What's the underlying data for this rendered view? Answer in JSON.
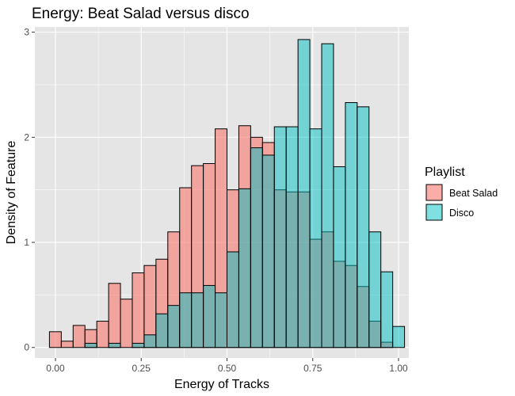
{
  "chart_data": {
    "type": "histogram",
    "title": "Energy: Beat Salad versus disco",
    "xlabel": "Energy of Tracks",
    "ylabel": "Density of Feature",
    "xlim": [
      -0.06,
      1.03
    ],
    "ylim": [
      -0.1,
      3.05
    ],
    "x_ticks": [
      0.0,
      0.25,
      0.5,
      0.75,
      1.0
    ],
    "x_tick_labels": [
      "0.00",
      "0.25",
      "0.50",
      "0.75",
      "1.00"
    ],
    "y_ticks": [
      0,
      1,
      2,
      3
    ],
    "y_tick_labels": [
      "0",
      "1",
      "2",
      "3"
    ],
    "grid": true,
    "panel_background": "#e5e5e5",
    "grid_color": "#ffffff",
    "bin_width": 0.0345,
    "bin_starts": [
      -0.0175,
      0.017,
      0.0515,
      0.086,
      0.1205,
      0.155,
      0.1895,
      0.224,
      0.2585,
      0.293,
      0.3275,
      0.362,
      0.3965,
      0.431,
      0.4655,
      0.5,
      0.5345,
      0.569,
      0.6035,
      0.638,
      0.6725,
      0.707,
      0.7415,
      0.776,
      0.8105,
      0.845,
      0.8795,
      0.914,
      0.9485
    ],
    "series": [
      {
        "name": "Beat Salad",
        "color": "#f8766d",
        "alpha": 0.6,
        "values": [
          0.15,
          0.06,
          0.21,
          0.17,
          0.25,
          0.61,
          0.46,
          0.71,
          0.78,
          0.84,
          1.1,
          1.52,
          1.73,
          1.75,
          2.08,
          1.5,
          2.11,
          2.0,
          1.95,
          1.5,
          1.48,
          1.48,
          1.03,
          1.1,
          0.82,
          0.78,
          0.58,
          0.25,
          0.05
        ]
      },
      {
        "name": "Disco",
        "color": "#00bfc4",
        "alpha": 0.5,
        "values": [
          0.0,
          0.0,
          0.0,
          0.04,
          0.0,
          0.04,
          0.0,
          0.04,
          0.12,
          0.32,
          0.4,
          0.52,
          0.52,
          0.59,
          0.52,
          0.91,
          1.51,
          1.9,
          1.83,
          2.1,
          2.1,
          2.93,
          2.08,
          2.89,
          1.72,
          2.33,
          2.29,
          1.1,
          0.72
        ]
      }
    ],
    "extra_disco_bins": [
      {
        "start": 0.914,
        "value": 0.42
      },
      {
        "start": 0.9485,
        "value": 0.23
      },
      {
        "start": 0.983,
        "value": 0.2
      }
    ],
    "legend": {
      "title": "Playlist",
      "position": "right",
      "entries": [
        "Beat Salad",
        "Disco"
      ]
    }
  }
}
